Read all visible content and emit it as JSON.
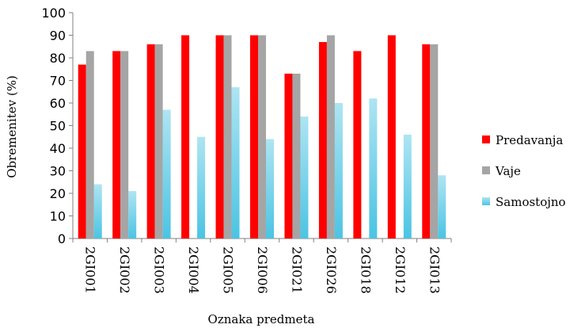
{
  "chart_data": {
    "type": "bar",
    "categories": [
      "2GI001",
      "2GI002",
      "2GI003",
      "2GI004",
      "2GI005",
      "2GI006",
      "2GI021",
      "2GI026",
      "2GI018",
      "2GI012",
      "2GI013"
    ],
    "series": [
      {
        "name": "Predavanja",
        "color": "#ff0000",
        "values": [
          77,
          83,
          86,
          90,
          90,
          90,
          73,
          87,
          83,
          90,
          86
        ]
      },
      {
        "name": "Vaje",
        "color": "#a5a5a5",
        "values": [
          83,
          83,
          86,
          null,
          90,
          90,
          73,
          90,
          null,
          null,
          86
        ]
      },
      {
        "name": "Samostojno",
        "color": "#4bc4e3",
        "values": [
          24,
          21,
          57,
          45,
          67,
          44,
          54,
          60,
          62,
          46,
          28
        ]
      }
    ],
    "xlabel": "Oznaka predmeta",
    "ylabel": "Obremenitev (%)",
    "ylim": [
      0,
      100
    ],
    "yticks": [
      0,
      10,
      20,
      30,
      40,
      50,
      60,
      70,
      80,
      90,
      100
    ],
    "grid": false,
    "legend": "right"
  }
}
